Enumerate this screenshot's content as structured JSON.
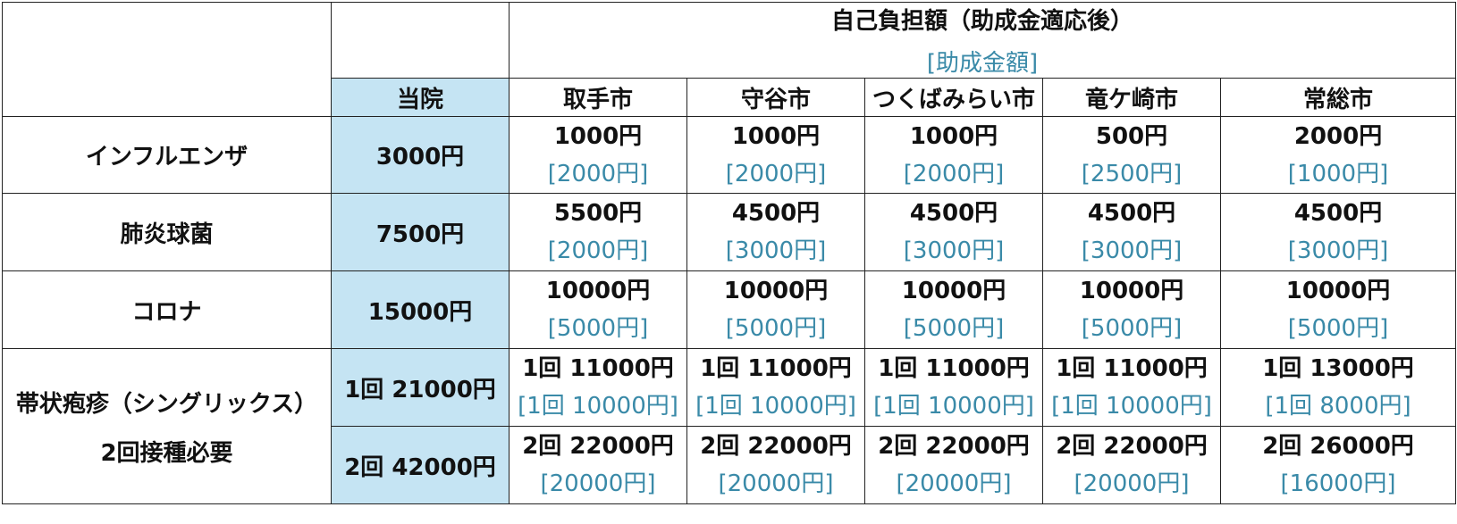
{
  "header": {
    "title": "自己負担額（助成金適応後）",
    "subtitle": "[助成金額]",
    "clinic_label": "当院",
    "cities": [
      "取手市",
      "守谷市",
      "つくばみらい市",
      "竜ケ崎市",
      "常総市"
    ]
  },
  "rows": [
    {
      "name": "インフルエンザ",
      "clinic": "3000円",
      "cells": [
        {
          "amount": "1000円",
          "subsidy": "[2000円]"
        },
        {
          "amount": "1000円",
          "subsidy": "[2000円]"
        },
        {
          "amount": "1000円",
          "subsidy": "[2000円]"
        },
        {
          "amount": "500円",
          "subsidy": "[2500円]"
        },
        {
          "amount": "2000円",
          "subsidy": "[1000円]"
        }
      ]
    },
    {
      "name": "肺炎球菌",
      "clinic": "7500円",
      "cells": [
        {
          "amount": "5500円",
          "subsidy": "[2000円]"
        },
        {
          "amount": "4500円",
          "subsidy": "[3000円]"
        },
        {
          "amount": "4500円",
          "subsidy": "[3000円]"
        },
        {
          "amount": "4500円",
          "subsidy": "[3000円]"
        },
        {
          "amount": "4500円",
          "subsidy": "[3000円]"
        }
      ]
    },
    {
      "name": "コロナ",
      "clinic": "15000円",
      "cells": [
        {
          "amount": "10000円",
          "subsidy": "[5000円]"
        },
        {
          "amount": "10000円",
          "subsidy": "[5000円]"
        },
        {
          "amount": "10000円",
          "subsidy": "[5000円]"
        },
        {
          "amount": "10000円",
          "subsidy": "[5000円]"
        },
        {
          "amount": "10000円",
          "subsidy": "[5000円]"
        }
      ]
    }
  ],
  "shingles": {
    "name_line1": "帯状疱疹（シングリックス）",
    "name_line2": "2回接種必要",
    "dose1": {
      "clinic": "1回 21000円",
      "cells": [
        {
          "amount": "1回 11000円",
          "subsidy": "[1回 10000円]"
        },
        {
          "amount": "1回 11000円",
          "subsidy": "[1回 10000円]"
        },
        {
          "amount": "1回 11000円",
          "subsidy": "[1回 10000円]"
        },
        {
          "amount": "1回 11000円",
          "subsidy": "[1回 10000円]"
        },
        {
          "amount": "1回 13000円",
          "subsidy": "[1回 8000円]"
        }
      ]
    },
    "dose2": {
      "clinic": "2回 42000円",
      "cells": [
        {
          "amount": "2回 22000円",
          "subsidy": "[20000円]"
        },
        {
          "amount": "2回 22000円",
          "subsidy": "[20000円]"
        },
        {
          "amount": "2回 22000円",
          "subsidy": "[20000円]"
        },
        {
          "amount": "2回 22000円",
          "subsidy": "[20000円]"
        },
        {
          "amount": "2回 26000円",
          "subsidy": "[16000円]"
        }
      ]
    }
  },
  "colors": {
    "clinic_column_bg": "#c5e4f3",
    "subsidy_text": "#3a8aa8",
    "border": "#222222"
  }
}
